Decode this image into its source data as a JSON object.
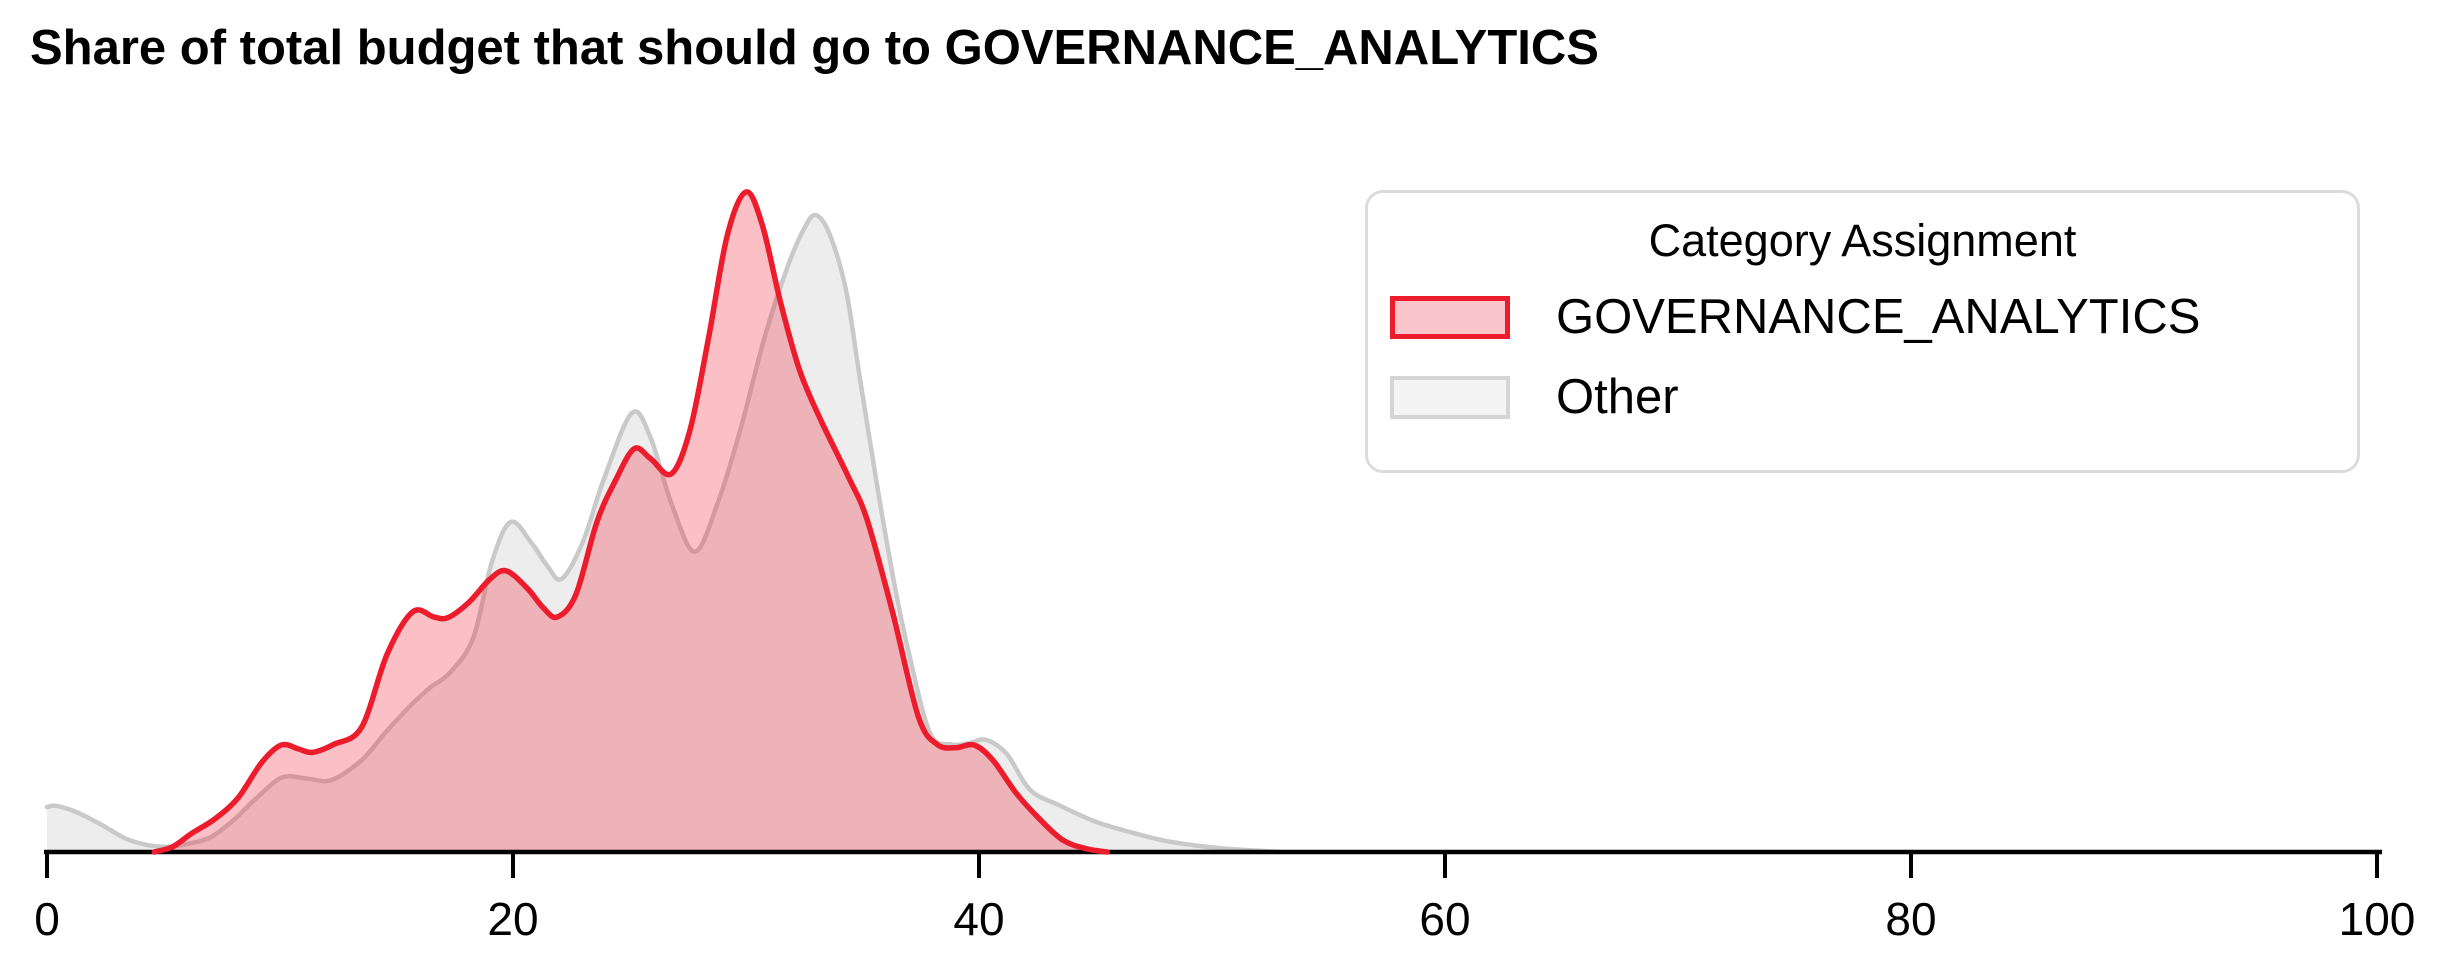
{
  "title": "Share of total budget that should go to GOVERNANCE_ANALYTICS",
  "legend": {
    "title": "Category Assignment",
    "items": [
      {
        "label": "GOVERNANCE_ANALYTICS",
        "fill": "#f9c5cb",
        "border": "#ec1c2d"
      },
      {
        "label": "Other",
        "fill": "#f4f4f4",
        "border": "#d5d5d5"
      }
    ]
  },
  "colors": {
    "axis": "#000000",
    "tick_label": "#000000",
    "background": "#ffffff"
  },
  "chart_data": {
    "type": "area",
    "subtype": "kde-density",
    "title": "Share of total budget that should go to GOVERNANCE_ANALYTICS",
    "xlabel": "",
    "ylabel": "",
    "xlim": [
      0,
      100
    ],
    "xticks": [
      "0",
      "20",
      "40",
      "60",
      "80",
      "100"
    ],
    "xtick_values": [
      0,
      20,
      40,
      60,
      80,
      100
    ],
    "grid": false,
    "legend_position": "upper right",
    "y_unit": "relative density (GOVERNANCE_ANALYTICS peak = 1.0)",
    "series": [
      {
        "name": "Other",
        "stroke": "#c9c9c9",
        "stroke_width": 4.5,
        "fill": "rgba(190,190,190,0.28)",
        "points": [
          [
            0,
            0.068
          ],
          [
            0.4,
            0.07
          ],
          [
            1.3,
            0.06
          ],
          [
            2.4,
            0.04
          ],
          [
            3.4,
            0.02
          ],
          [
            4.4,
            0.01
          ],
          [
            5.2,
            0.008
          ],
          [
            6.0,
            0.012
          ],
          [
            7.0,
            0.022
          ],
          [
            8.0,
            0.048
          ],
          [
            9.0,
            0.082
          ],
          [
            10.1,
            0.113
          ],
          [
            11.2,
            0.111
          ],
          [
            12.2,
            0.109
          ],
          [
            13.5,
            0.139
          ],
          [
            14.5,
            0.18
          ],
          [
            15.5,
            0.218
          ],
          [
            16.4,
            0.248
          ],
          [
            17.3,
            0.272
          ],
          [
            18.3,
            0.325
          ],
          [
            19.1,
            0.44
          ],
          [
            19.9,
            0.5
          ],
          [
            20.8,
            0.468
          ],
          [
            21.5,
            0.432
          ],
          [
            22.1,
            0.414
          ],
          [
            23.0,
            0.47
          ],
          [
            23.9,
            0.565
          ],
          [
            25.1,
            0.665
          ],
          [
            25.9,
            0.628
          ],
          [
            26.8,
            0.528
          ],
          [
            27.8,
            0.455
          ],
          [
            28.8,
            0.53
          ],
          [
            29.8,
            0.645
          ],
          [
            30.8,
            0.78
          ],
          [
            31.8,
            0.888
          ],
          [
            32.5,
            0.945
          ],
          [
            33.0,
            0.965
          ],
          [
            33.6,
            0.935
          ],
          [
            34.3,
            0.85
          ],
          [
            34.9,
            0.715
          ],
          [
            35.7,
            0.54
          ],
          [
            36.4,
            0.4
          ],
          [
            37.0,
            0.3
          ],
          [
            37.9,
            0.18
          ],
          [
            38.8,
            0.163
          ],
          [
            39.6,
            0.165
          ],
          [
            40.3,
            0.17
          ],
          [
            41.2,
            0.148
          ],
          [
            42.2,
            0.094
          ],
          [
            43.5,
            0.07
          ],
          [
            45.0,
            0.046
          ],
          [
            46.5,
            0.03
          ],
          [
            48.0,
            0.017
          ],
          [
            49.5,
            0.009
          ],
          [
            51.0,
            0.004
          ],
          [
            53.0,
            0.0
          ]
        ]
      },
      {
        "name": "GOVERNANCE_ANALYTICS",
        "stroke": "#ec1c2d",
        "stroke_width": 5.5,
        "fill": "rgba(236,28,45,0.28)",
        "points": [
          [
            4.6,
            0.0
          ],
          [
            5.4,
            0.008
          ],
          [
            6.2,
            0.028
          ],
          [
            7.2,
            0.05
          ],
          [
            8.2,
            0.082
          ],
          [
            9.2,
            0.135
          ],
          [
            10.05,
            0.162
          ],
          [
            10.8,
            0.156
          ],
          [
            11.4,
            0.151
          ],
          [
            12.3,
            0.163
          ],
          [
            13.5,
            0.189
          ],
          [
            14.6,
            0.3
          ],
          [
            15.7,
            0.364
          ],
          [
            16.6,
            0.356
          ],
          [
            17.2,
            0.355
          ],
          [
            18.1,
            0.378
          ],
          [
            19.0,
            0.413
          ],
          [
            19.7,
            0.426
          ],
          [
            20.6,
            0.4
          ],
          [
            21.3,
            0.37
          ],
          [
            21.9,
            0.356
          ],
          [
            22.7,
            0.39
          ],
          [
            23.6,
            0.5
          ],
          [
            24.4,
            0.563
          ],
          [
            25.2,
            0.611
          ],
          [
            25.9,
            0.596
          ],
          [
            26.8,
            0.573
          ],
          [
            27.6,
            0.64
          ],
          [
            28.4,
            0.78
          ],
          [
            29.2,
            0.935
          ],
          [
            30.0,
            1.0
          ],
          [
            30.7,
            0.95
          ],
          [
            31.5,
            0.83
          ],
          [
            32.3,
            0.73
          ],
          [
            33.2,
            0.655
          ],
          [
            34.4,
            0.568
          ],
          [
            35.2,
            0.503
          ],
          [
            36.3,
            0.362
          ],
          [
            37.4,
            0.205
          ],
          [
            38.2,
            0.163
          ],
          [
            39.0,
            0.158
          ],
          [
            39.8,
            0.162
          ],
          [
            40.6,
            0.139
          ],
          [
            41.6,
            0.089
          ],
          [
            42.6,
            0.05
          ],
          [
            43.6,
            0.018
          ],
          [
            44.6,
            0.005
          ],
          [
            45.5,
            0.0
          ]
        ]
      }
    ]
  }
}
